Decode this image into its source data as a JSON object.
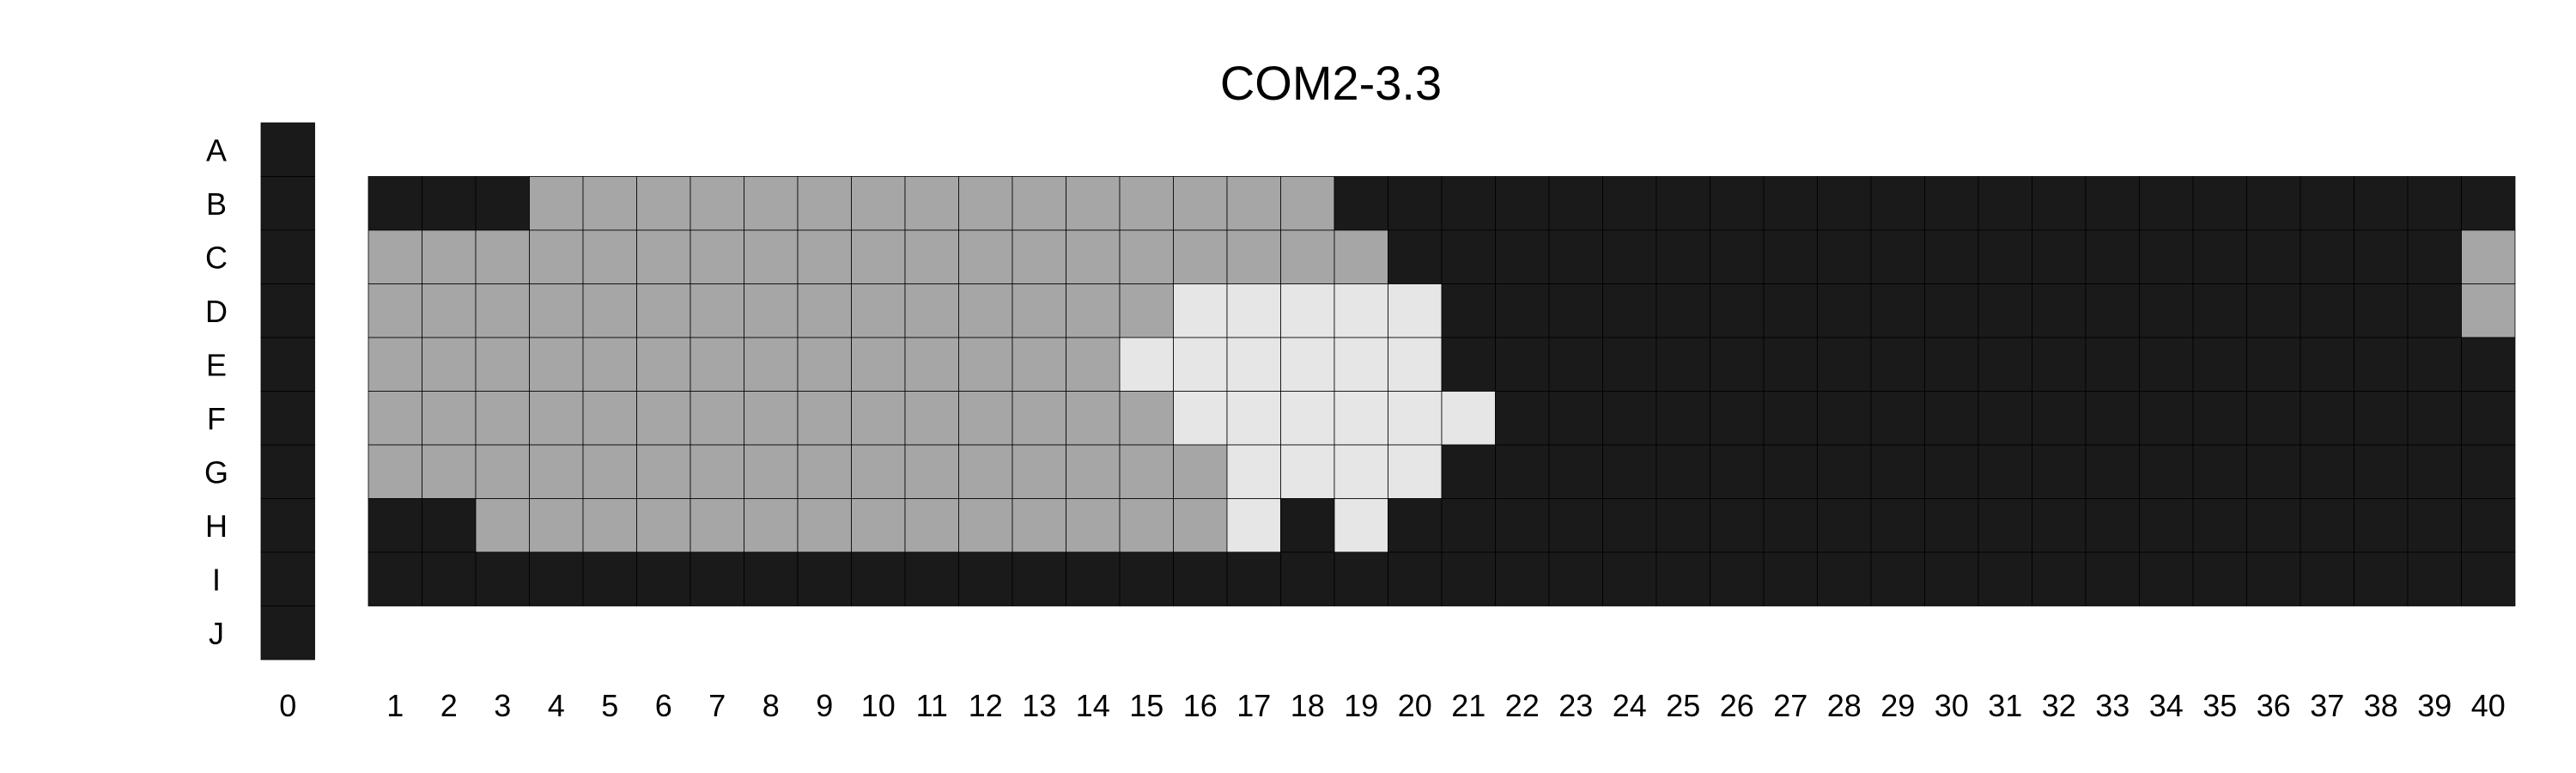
{
  "chart_data": {
    "type": "heatmap",
    "title": "COM2-3.3",
    "xlabel": "",
    "ylabel": "",
    "rows": [
      "A",
      "B",
      "C",
      "D",
      "E",
      "F",
      "G",
      "H",
      "I",
      "J"
    ],
    "cols": [
      "0",
      "1",
      "2",
      "3",
      "4",
      "5",
      "6",
      "7",
      "8",
      "9",
      "10",
      "11",
      "12",
      "13",
      "14",
      "15",
      "16",
      "17",
      "18",
      "19",
      "20",
      "21",
      "22",
      "23",
      "24",
      "25",
      "26",
      "27",
      "28",
      "29",
      "30",
      "31",
      "32",
      "33",
      "34",
      "35",
      "36",
      "37",
      "38",
      "39",
      "40"
    ],
    "levels": {
      "0": "black",
      "1": "gray",
      "2": "light gray"
    },
    "colors": {
      "0": "#1a1a1a",
      "1": "#a6a6a6",
      "2": "#e6e6e6",
      "grid": "#000000"
    },
    "column_0_rows": [
      "A",
      "B",
      "C",
      "D",
      "E",
      "F",
      "G",
      "H",
      "I",
      "J"
    ],
    "column_0_values": [
      0,
      0,
      0,
      0,
      0,
      0,
      0,
      0,
      0,
      0
    ],
    "main_rows": [
      "B",
      "C",
      "D",
      "E",
      "F",
      "G",
      "H",
      "I"
    ],
    "main_values": [
      [
        0,
        0,
        0,
        1,
        1,
        1,
        1,
        1,
        1,
        1,
        1,
        1,
        1,
        1,
        1,
        1,
        1,
        1,
        0,
        0,
        0,
        0,
        0,
        0,
        0,
        0,
        0,
        0,
        0,
        0,
        0,
        0,
        0,
        0,
        0,
        0,
        0,
        0,
        0,
        0
      ],
      [
        1,
        1,
        1,
        1,
        1,
        1,
        1,
        1,
        1,
        1,
        1,
        1,
        1,
        1,
        1,
        1,
        1,
        1,
        1,
        0,
        0,
        0,
        0,
        0,
        0,
        0,
        0,
        0,
        0,
        0,
        0,
        0,
        0,
        0,
        0,
        0,
        0,
        0,
        0,
        1
      ],
      [
        1,
        1,
        1,
        1,
        1,
        1,
        1,
        1,
        1,
        1,
        1,
        1,
        1,
        1,
        1,
        2,
        2,
        2,
        2,
        2,
        0,
        0,
        0,
        0,
        0,
        0,
        0,
        0,
        0,
        0,
        0,
        0,
        0,
        0,
        0,
        0,
        0,
        0,
        0,
        1
      ],
      [
        1,
        1,
        1,
        1,
        1,
        1,
        1,
        1,
        1,
        1,
        1,
        1,
        1,
        1,
        2,
        2,
        2,
        2,
        2,
        2,
        0,
        0,
        0,
        0,
        0,
        0,
        0,
        0,
        0,
        0,
        0,
        0,
        0,
        0,
        0,
        0,
        0,
        0,
        0,
        0
      ],
      [
        1,
        1,
        1,
        1,
        1,
        1,
        1,
        1,
        1,
        1,
        1,
        1,
        1,
        1,
        1,
        2,
        2,
        2,
        2,
        2,
        2,
        0,
        0,
        0,
        0,
        0,
        0,
        0,
        0,
        0,
        0,
        0,
        0,
        0,
        0,
        0,
        0,
        0,
        0,
        0
      ],
      [
        1,
        1,
        1,
        1,
        1,
        1,
        1,
        1,
        1,
        1,
        1,
        1,
        1,
        1,
        1,
        1,
        2,
        2,
        2,
        2,
        0,
        0,
        0,
        0,
        0,
        0,
        0,
        0,
        0,
        0,
        0,
        0,
        0,
        0,
        0,
        0,
        0,
        0,
        0,
        0
      ],
      [
        0,
        0,
        1,
        1,
        1,
        1,
        1,
        1,
        1,
        1,
        1,
        1,
        1,
        1,
        1,
        1,
        2,
        0,
        2,
        0,
        0,
        0,
        0,
        0,
        0,
        0,
        0,
        0,
        0,
        0,
        0,
        0,
        0,
        0,
        0,
        0,
        0,
        0,
        0,
        0
      ],
      [
        0,
        0,
        0,
        0,
        0,
        0,
        0,
        0,
        0,
        0,
        0,
        0,
        0,
        0,
        0,
        0,
        0,
        0,
        0,
        0,
        0,
        0,
        0,
        0,
        0,
        0,
        0,
        0,
        0,
        0,
        0,
        0,
        0,
        0,
        0,
        0,
        0,
        0,
        0,
        0
      ]
    ]
  }
}
